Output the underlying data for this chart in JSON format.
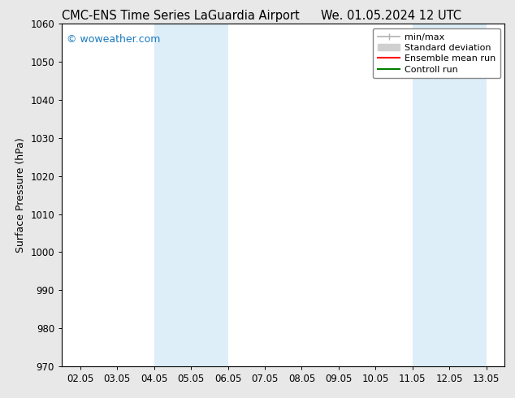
{
  "title_left": "CMC-ENS Time Series LaGuardia Airport",
  "title_right": "We. 01.05.2024 12 UTC",
  "ylabel": "Surface Pressure (hPa)",
  "ylim": [
    970,
    1060
  ],
  "yticks": [
    970,
    980,
    990,
    1000,
    1010,
    1020,
    1030,
    1040,
    1050,
    1060
  ],
  "xtick_labels": [
    "02.05",
    "03.05",
    "04.05",
    "05.05",
    "06.05",
    "07.05",
    "08.05",
    "09.05",
    "10.05",
    "11.05",
    "12.05",
    "13.05"
  ],
  "xtick_positions": [
    0,
    1,
    2,
    3,
    4,
    5,
    6,
    7,
    8,
    9,
    10,
    11
  ],
  "xlim": [
    -0.5,
    11.5
  ],
  "shaded_regions": [
    {
      "xmin": 2,
      "xmax": 4,
      "color": "#ddeef8"
    },
    {
      "xmin": 9,
      "xmax": 11,
      "color": "#ddeef8"
    }
  ],
  "watermark_text": "© woweather.com",
  "watermark_color": "#1a7abf",
  "legend_items": [
    {
      "label": "min/max",
      "color": "#b0b0b0",
      "lw": 1.2
    },
    {
      "label": "Standard deviation",
      "color": "#d0d0d0",
      "lw": 6
    },
    {
      "label": "Ensemble mean run",
      "color": "red",
      "lw": 1.5
    },
    {
      "label": "Controll run",
      "color": "green",
      "lw": 1.5
    }
  ],
  "bg_color": "#e8e8e8",
  "plot_bg_color": "#ffffff",
  "title_fontsize": 10.5,
  "axis_label_fontsize": 9,
  "tick_fontsize": 8.5,
  "legend_fontsize": 8
}
